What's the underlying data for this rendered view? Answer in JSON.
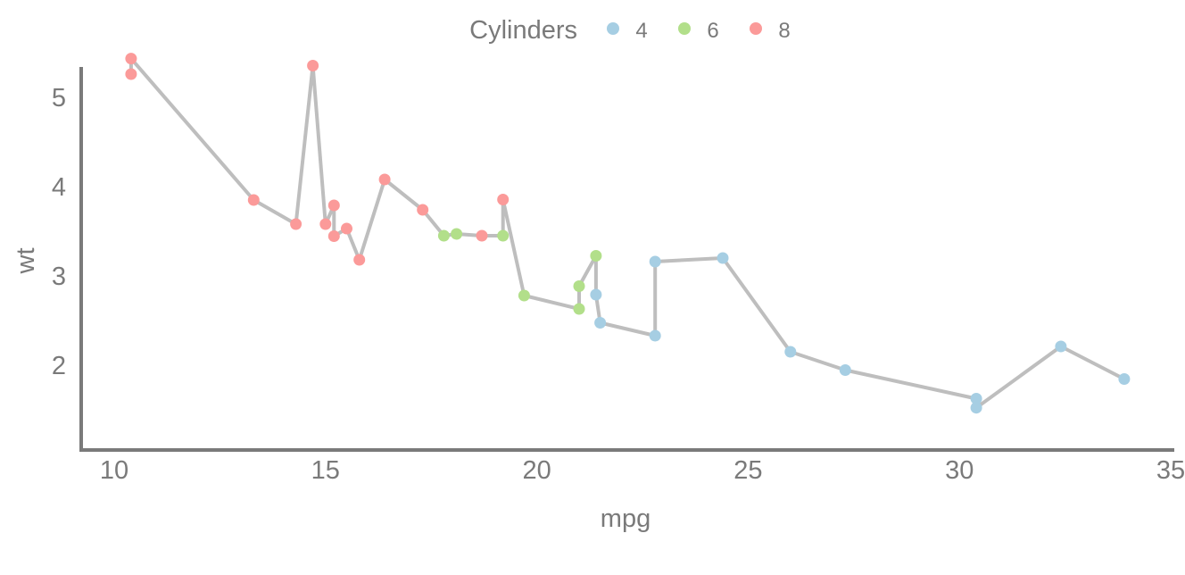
{
  "chart_data": {
    "type": "scatter",
    "connect_points": true,
    "xlabel": "mpg",
    "ylabel": "wt",
    "xlim": [
      9.3,
      35
    ],
    "ylim": [
      1.3,
      5.65
    ],
    "x_ticks": [
      10,
      15,
      20,
      25,
      30,
      35
    ],
    "y_ticks": [
      2,
      3,
      4,
      5
    ],
    "grid": false,
    "legend": {
      "title": "Cylinders",
      "position": "top",
      "entries": [
        {
          "label": "4",
          "color": "#a6cee3"
        },
        {
          "label": "6",
          "color": "#b2df8a"
        },
        {
          "label": "8",
          "color": "#fb9a99"
        }
      ]
    },
    "line_color": "#bebebe",
    "points": [
      {
        "x": 10.4,
        "y": 5.25,
        "cyl": "8"
      },
      {
        "x": 10.4,
        "y": 5.424,
        "cyl": "8"
      },
      {
        "x": 13.3,
        "y": 3.84,
        "cyl": "8"
      },
      {
        "x": 14.3,
        "y": 3.57,
        "cyl": "8"
      },
      {
        "x": 14.7,
        "y": 5.345,
        "cyl": "8"
      },
      {
        "x": 15.0,
        "y": 3.57,
        "cyl": "8"
      },
      {
        "x": 15.2,
        "y": 3.78,
        "cyl": "8"
      },
      {
        "x": 15.2,
        "y": 3.435,
        "cyl": "8"
      },
      {
        "x": 15.5,
        "y": 3.52,
        "cyl": "8"
      },
      {
        "x": 15.8,
        "y": 3.17,
        "cyl": "8"
      },
      {
        "x": 16.4,
        "y": 4.07,
        "cyl": "8"
      },
      {
        "x": 17.3,
        "y": 3.73,
        "cyl": "8"
      },
      {
        "x": 17.8,
        "y": 3.44,
        "cyl": "6"
      },
      {
        "x": 18.1,
        "y": 3.46,
        "cyl": "6"
      },
      {
        "x": 18.7,
        "y": 3.44,
        "cyl": "8"
      },
      {
        "x": 19.2,
        "y": 3.44,
        "cyl": "6"
      },
      {
        "x": 19.2,
        "y": 3.845,
        "cyl": "8"
      },
      {
        "x": 19.7,
        "y": 2.77,
        "cyl": "6"
      },
      {
        "x": 21.0,
        "y": 2.62,
        "cyl": "6"
      },
      {
        "x": 21.0,
        "y": 2.875,
        "cyl": "6"
      },
      {
        "x": 21.4,
        "y": 3.215,
        "cyl": "6"
      },
      {
        "x": 21.4,
        "y": 2.78,
        "cyl": "4"
      },
      {
        "x": 21.5,
        "y": 2.465,
        "cyl": "4"
      },
      {
        "x": 22.8,
        "y": 2.32,
        "cyl": "4"
      },
      {
        "x": 22.8,
        "y": 3.15,
        "cyl": "4"
      },
      {
        "x": 24.4,
        "y": 3.19,
        "cyl": "4"
      },
      {
        "x": 26.0,
        "y": 2.14,
        "cyl": "4"
      },
      {
        "x": 27.3,
        "y": 1.935,
        "cyl": "4"
      },
      {
        "x": 30.4,
        "y": 1.615,
        "cyl": "4"
      },
      {
        "x": 30.4,
        "y": 1.513,
        "cyl": "4"
      },
      {
        "x": 32.4,
        "y": 2.2,
        "cyl": "4"
      },
      {
        "x": 33.9,
        "y": 1.835,
        "cyl": "4"
      }
    ]
  }
}
